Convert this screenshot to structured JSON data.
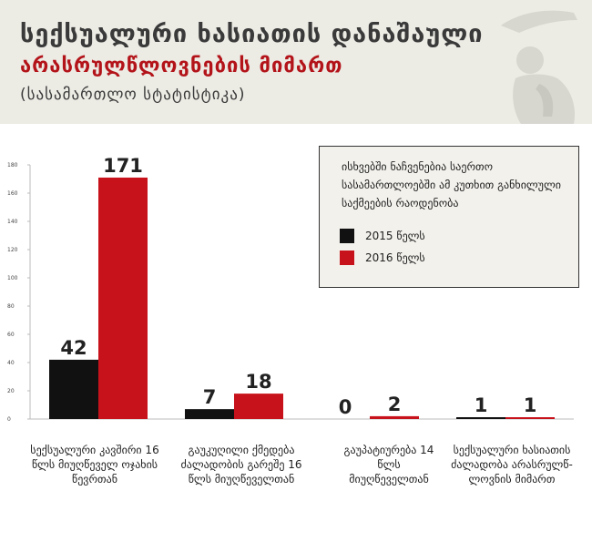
{
  "header": {
    "title_line1": "სექსუალური ხასიათის დანაშაული",
    "title_line2": "არასრულწლოვნების მიმართ",
    "title_line3": "(სასამართლო სტატისტიკა)"
  },
  "legend": {
    "title": "ისხვებში ნაჩვენებია საერთო სასამართლოებში ამ კუთხით განხილული საქმეების რაოდენობა",
    "items": [
      "2015 წელს",
      "2016 წელს"
    ]
  },
  "colors": {
    "y2015": "#111111",
    "y2016": "#c8121b",
    "header_bg": "#ecebe4",
    "title_red": "#b3141a"
  },
  "chart_data": {
    "type": "bar",
    "categories": [
      "სექსუალური კავშირი 16 წლს მიუღწეველ ოჯახის წევრთან",
      "გაუკუღილი ქმედება ძალადობის გარეშე 16 წლს მიუღწეველთან",
      "გაუპატიურება 14 წლს მიუღწეველთან",
      "სექსუალური ხასიათის ძალადობა არასრულწ-ლოვნის მიმართ"
    ],
    "series": [
      {
        "name": "2015 წელს",
        "values": [
          42,
          7,
          0,
          1
        ]
      },
      {
        "name": "2016 წელს",
        "values": [
          171,
          18,
          2,
          1
        ]
      }
    ],
    "ylim": [
      0,
      180
    ],
    "yticks": [
      0,
      20,
      40,
      60,
      80,
      100,
      120,
      140,
      160,
      180
    ],
    "grid": false,
    "legend_position": "top-right"
  }
}
